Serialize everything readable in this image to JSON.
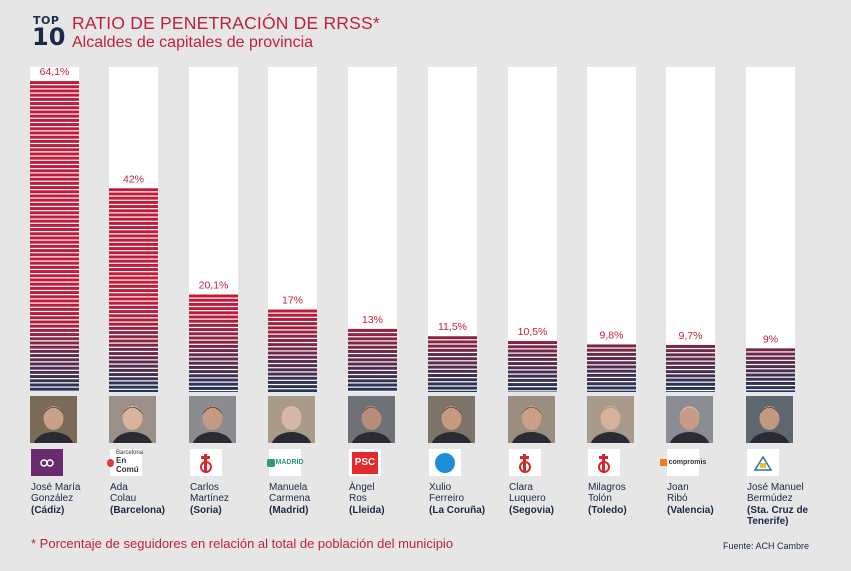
{
  "header": {
    "badge_top": "TOP",
    "badge_num": "10",
    "title": "RATIO DE PENETRACIÓN DE RRSS*",
    "subtitle": "Alcaldes de capitales de provincia"
  },
  "footnote": "* Porcentaje de seguidores en relación al total de población del municipio",
  "source": "Fuente: ACH Cambre",
  "colors": {
    "accent": "#c2203a",
    "navy": "#1b2a48",
    "bar_bg": "#ffffff",
    "background": "#e6e6e6"
  },
  "chart_data": {
    "type": "bar",
    "title": "RATIO DE PENETRACIÓN DE RRSS*",
    "subtitle": "Alcaldes de capitales de provincia",
    "categories": [
      "José María González (Cádiz)",
      "Ada Colau (Barcelona)",
      "Carlos Martínez (Soria)",
      "Manuela Carmena (Madrid)",
      "Àngel Ros (Lleida)",
      "Xulio Ferreiro (La Coruña)",
      "Clara Luquero (Segovia)",
      "Milagros Tolón (Toledo)",
      "Joan Ribó (Valencia)",
      "José Manuel Bermúdez (Sta. Cruz de Tenerife)"
    ],
    "values": [
      64.1,
      42,
      20.1,
      17,
      13,
      11.5,
      10.5,
      9.8,
      9.7,
      9
    ],
    "value_labels": [
      "64,1%",
      "42%",
      "20,1%",
      "17%",
      "13%",
      "11,5%",
      "10,5%",
      "9,8%",
      "9,7%",
      "9%"
    ],
    "ylim": [
      0,
      67
    ]
  },
  "mayors": [
    {
      "first": "José María",
      "last": "González",
      "city": "(Cádiz)",
      "logo": "podemos-logo"
    },
    {
      "first": "Ada",
      "last": "Colau",
      "city": "(Barcelona)",
      "logo": "barcelona-en-comu-logo",
      "logo_text_small": "Barcelona",
      "logo_text": "En Comú"
    },
    {
      "first": "Carlos",
      "last": "Martínez",
      "city": "(Soria)",
      "logo": "psoe-logo"
    },
    {
      "first": "Manuela",
      "last": "Carmena",
      "city": "(Madrid)",
      "logo": "ahora-madrid-logo",
      "logo_text": "MADRID"
    },
    {
      "first": "Àngel",
      "last": "Ros",
      "city": "(Lleida)",
      "logo": "psc-logo",
      "logo_text": "PSC"
    },
    {
      "first": "Xulio",
      "last": "Ferreiro",
      "city": "(La Coruña)",
      "logo": "marea-atlantica-logo"
    },
    {
      "first": "Clara",
      "last": "Luquero",
      "city": "(Segovia)",
      "logo": "psoe-logo"
    },
    {
      "first": "Milagros",
      "last": "Tolón",
      "city": "(Toledo)",
      "logo": "psoe-logo"
    },
    {
      "first": "Joan",
      "last": "Ribó",
      "city": "(Valencia)",
      "logo": "compromis-logo",
      "logo_text": "compromis"
    },
    {
      "first": "José Manuel",
      "last": "Bermúdez",
      "city": "(Sta. Cruz de Tenerife)",
      "logo": "coalicion-canaria-logo"
    }
  ]
}
